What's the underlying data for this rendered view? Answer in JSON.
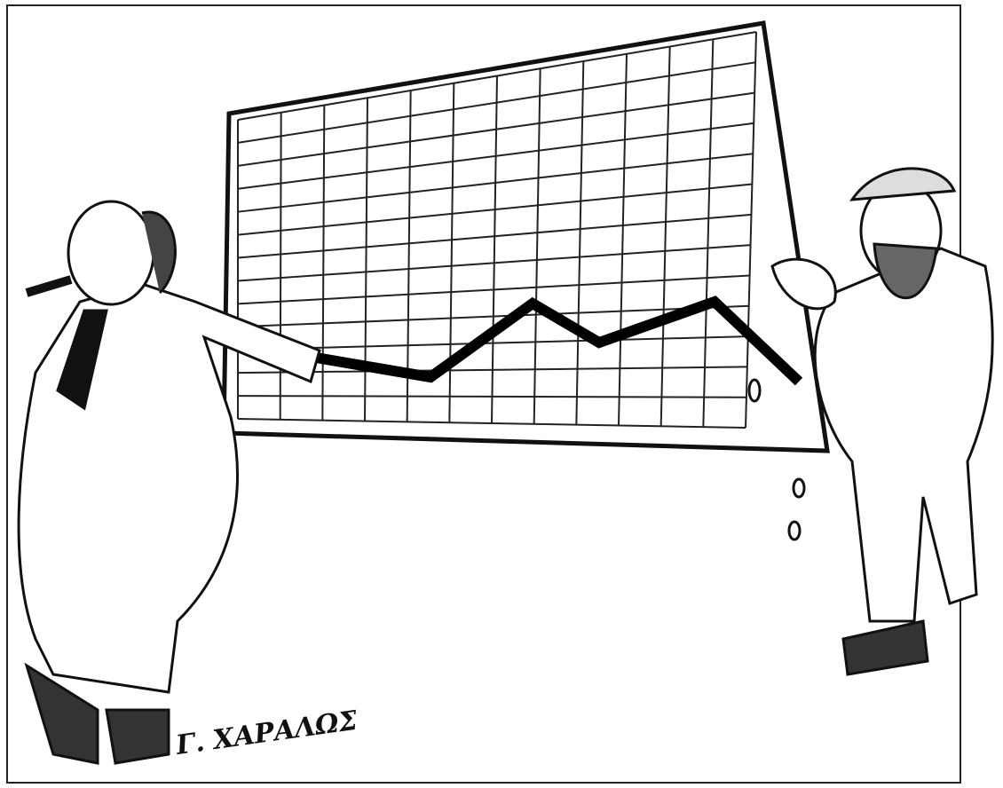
{
  "signature": "Γ. ΧΑΡΑΛΩΣ"
}
